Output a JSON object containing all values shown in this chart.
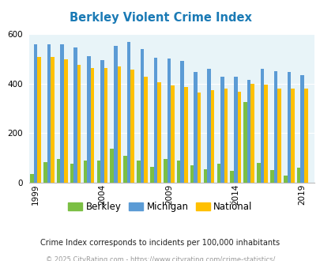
{
  "title": "Berkley Violent Crime Index",
  "years": [
    1999,
    2000,
    2001,
    2002,
    2003,
    2004,
    2005,
    2006,
    2007,
    2008,
    2009,
    2010,
    2011,
    2012,
    2013,
    2014,
    2015,
    2016,
    2017,
    2018,
    2019,
    2020
  ],
  "berkley": [
    35,
    82,
    95,
    75,
    88,
    88,
    138,
    108,
    88,
    65,
    95,
    90,
    70,
    55,
    75,
    48,
    325,
    80,
    50,
    30,
    60,
    0
  ],
  "michigan": [
    557,
    557,
    557,
    545,
    510,
    495,
    553,
    568,
    538,
    503,
    500,
    490,
    445,
    458,
    428,
    428,
    415,
    460,
    450,
    445,
    435,
    0
  ],
  "national": [
    506,
    506,
    497,
    474,
    463,
    463,
    469,
    457,
    427,
    405,
    393,
    387,
    363,
    373,
    381,
    368,
    399,
    395,
    381,
    379,
    379,
    0
  ],
  "xtick_labels": [
    "1999",
    "2004",
    "2009",
    "2014",
    "2019"
  ],
  "xtick_positions": [
    1999,
    2004,
    2009,
    2014,
    2019
  ],
  "ylim": [
    0,
    600
  ],
  "yticks": [
    0,
    200,
    400,
    600
  ],
  "bar_width": 0.27,
  "berkley_color": "#7bbf44",
  "michigan_color": "#5b9bd5",
  "national_color": "#ffc000",
  "bg_color": "#e8f4f8",
  "title_color": "#1a7ab5",
  "footnote1": "Crime Index corresponds to incidents per 100,000 inhabitants",
  "footnote2": "© 2025 CityRating.com - https://www.cityrating.com/crime-statistics/",
  "legend_labels": [
    "Berkley",
    "Michigan",
    "National"
  ]
}
